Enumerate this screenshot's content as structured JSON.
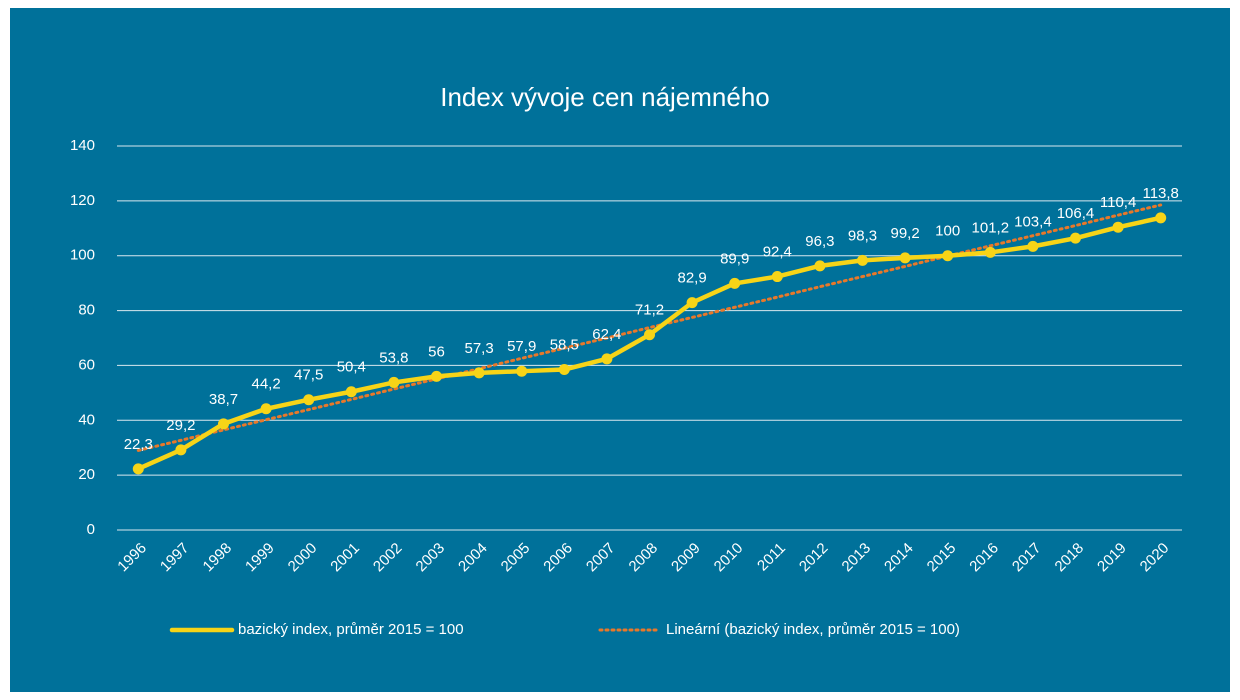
{
  "chart_data": {
    "type": "line",
    "title": "Index vývoje cen nájemného",
    "categories": [
      "1996",
      "1997",
      "1998",
      "1999",
      "2000",
      "2001",
      "2002",
      "2003",
      "2004",
      "2005",
      "2006",
      "2007",
      "2008",
      "2009",
      "2010",
      "2011",
      "2012",
      "2013",
      "2014",
      "2015",
      "2016",
      "2017",
      "2018",
      "2019",
      "2020"
    ],
    "series": [
      {
        "name": "bazický index, průměr 2015 = 100",
        "color": "#f7d417",
        "style": "solid",
        "values": [
          22.3,
          29.2,
          38.7,
          44.2,
          47.5,
          50.4,
          53.8,
          56,
          57.3,
          57.9,
          58.5,
          62.4,
          71.2,
          82.9,
          89.9,
          92.4,
          96.3,
          98.3,
          99.2,
          100,
          101.2,
          103.4,
          106.4,
          110.4,
          113.8
        ],
        "value_labels": [
          "22,3",
          "29,2",
          "38,7",
          "44,2",
          "47,5",
          "50,4",
          "53,8",
          "56",
          "57,3",
          "57,9",
          "58,5",
          "62,4",
          "71,2",
          "82,9",
          "89,9",
          "92,4",
          "96,3",
          "98,3",
          "99,2",
          "100",
          "101,2",
          "103,4",
          "106,4",
          "110,4",
          "113,8"
        ]
      },
      {
        "name": "Lineární (bazický index, průměr 2015 = 100)",
        "color": "#e8782a",
        "style": "dotted",
        "values": [
          29.0,
          32.7,
          36.5,
          40.2,
          43.9,
          47.6,
          51.4,
          55.1,
          58.8,
          62.6,
          66.3,
          70.0,
          73.8,
          77.5,
          81.2,
          84.9,
          88.7,
          92.4,
          96.1,
          99.9,
          103.6,
          107.3,
          111.0,
          114.8,
          118.5
        ]
      }
    ],
    "ylim": [
      0,
      140
    ],
    "yticks": [
      0,
      20,
      40,
      60,
      80,
      100,
      120,
      140
    ],
    "grid": true,
    "legend": "bottom"
  }
}
